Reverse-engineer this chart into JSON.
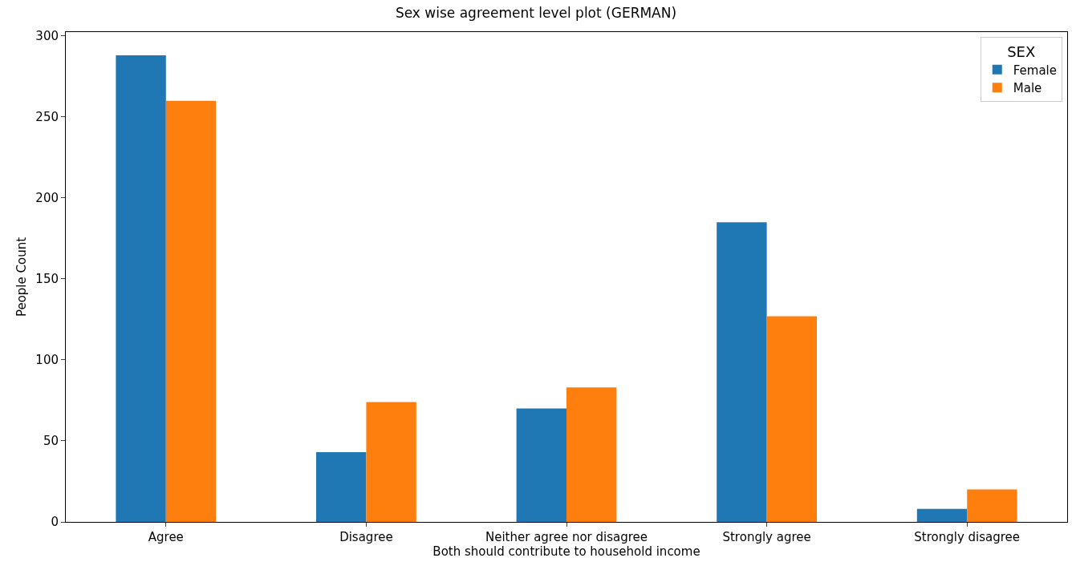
{
  "chart_data": {
    "type": "bar",
    "title": "Sex wise agreement level plot (GERMAN)",
    "xlabel": "Both should contribute to household income",
    "ylabel": "People Count",
    "legend_title": "SEX",
    "legend": "top right",
    "categories": [
      "Agree",
      "Disagree",
      "Neither agree nor disagree",
      "Strongly agree",
      "Strongly disagree"
    ],
    "series": [
      {
        "name": "Female",
        "color": "#1f77b4",
        "values": [
          288,
          43,
          70,
          185,
          8
        ]
      },
      {
        "name": "Male",
        "color": "#ff7f0e",
        "values": [
          260,
          74,
          83,
          127,
          20
        ]
      }
    ],
    "ylim": [
      0,
      302.4
    ],
    "yticks": [
      0,
      50,
      100,
      150,
      200,
      250,
      300
    ]
  }
}
